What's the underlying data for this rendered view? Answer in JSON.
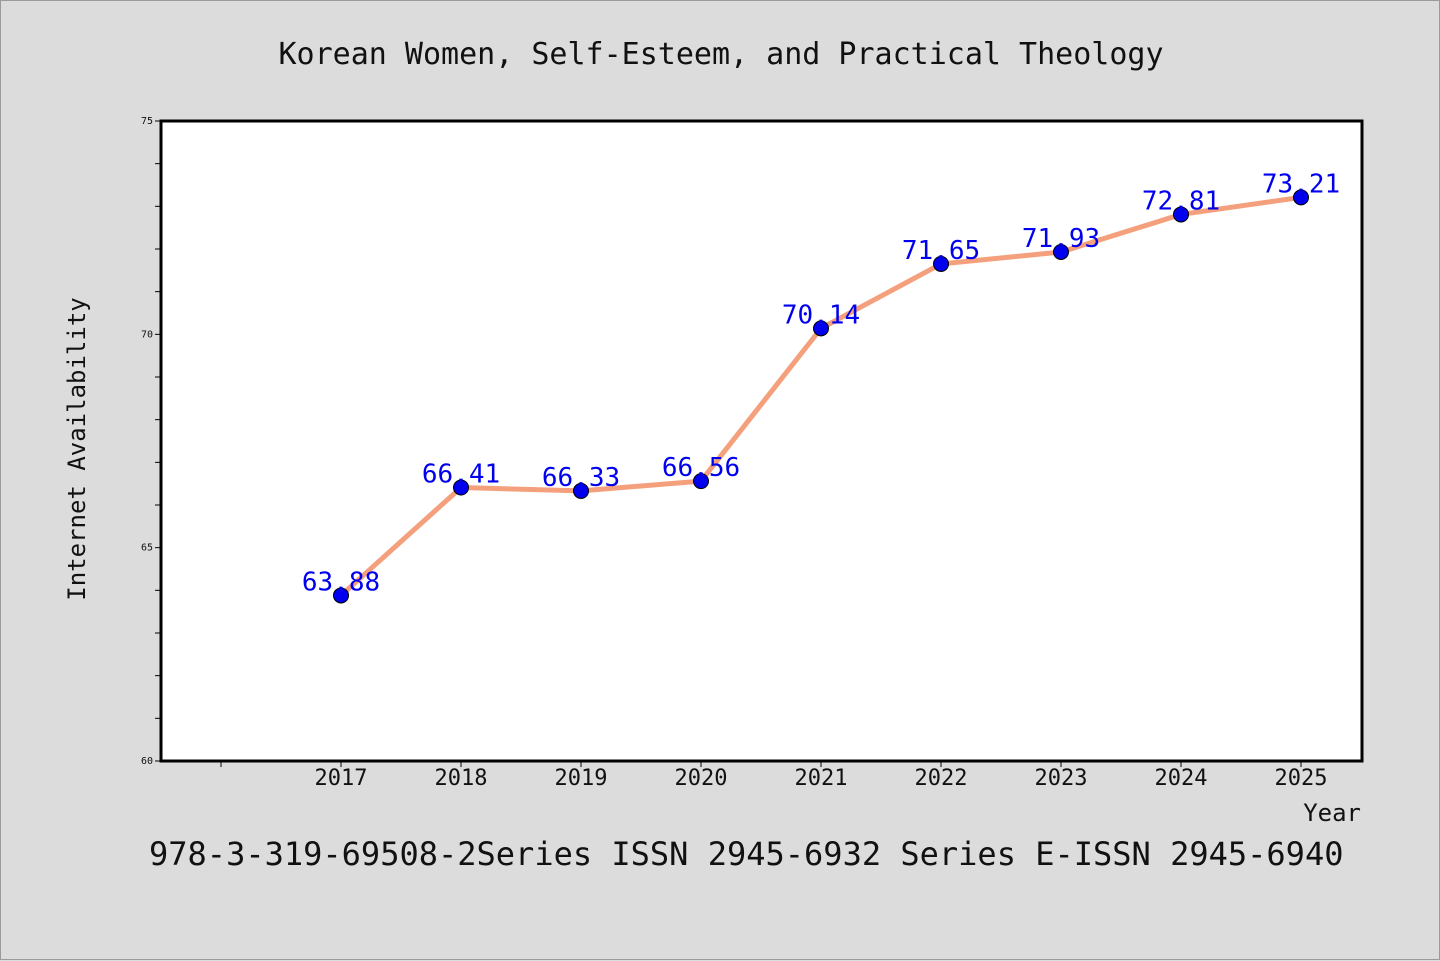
{
  "chart_data": {
    "type": "line",
    "title": "Korean Women, Self-Esteem, and Practical Theology",
    "xlabel": "Year",
    "ylabel": "Internet Availability",
    "categories": [
      "2017",
      "2018",
      "2019",
      "2020",
      "2021",
      "2022",
      "2023",
      "2024",
      "2025"
    ],
    "series": [
      {
        "values": [
          63.88,
          66.41,
          66.33,
          66.56,
          70.14,
          71.65,
          71.93,
          72.81,
          73.21
        ],
        "data_labels": [
          "63.88",
          "66.41",
          "66.33",
          "66.56",
          "70.14",
          "71.65",
          "71.93",
          "72.81",
          "73.21"
        ]
      }
    ],
    "ylim": [
      60,
      75
    ],
    "y_ticks": [
      "60",
      "65",
      "70",
      "75"
    ],
    "grid": false,
    "legend": "none",
    "footer": "978-3-319-69508-2Series ISSN 2945-6932 Series E-ISSN 2945-6940"
  },
  "colors": {
    "background": "#dcdcdc",
    "plot_background": "#ffffff",
    "line": "#f4a07c",
    "marker": "#0000ee",
    "data_label": "#0000ee",
    "axis": "#000000"
  }
}
